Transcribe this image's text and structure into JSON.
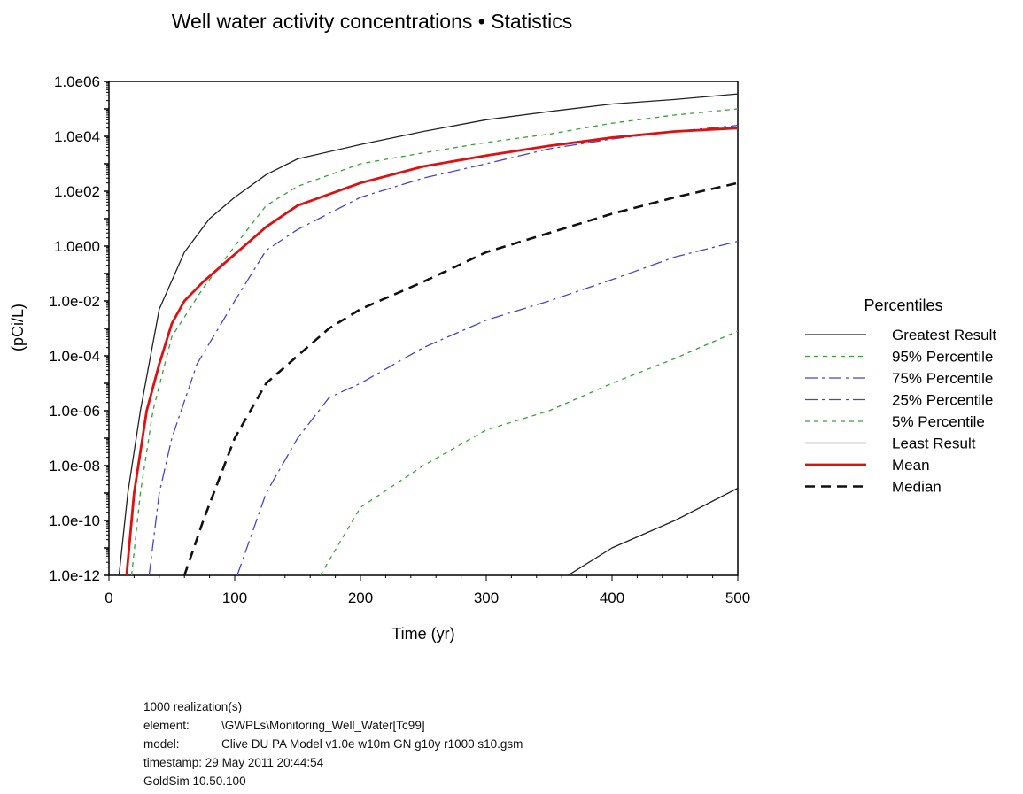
{
  "chart_data": {
    "type": "line",
    "title": "Well water activity concentrations • Statistics",
    "xlabel": "Time (yr)",
    "ylabel": "(pCi/L)",
    "xlim": [
      0,
      500
    ],
    "xticks": [
      0,
      100,
      200,
      300,
      400,
      500
    ],
    "xtick_labels": [
      "0",
      "100",
      "200",
      "300",
      "400",
      "500"
    ],
    "yscale": "log",
    "ylim_exp": [
      -12,
      6
    ],
    "yticks_exp": [
      -12,
      -10,
      -8,
      -6,
      -4,
      -2,
      0,
      2,
      4,
      6
    ],
    "ytick_labels": [
      "1.0e-12",
      "1.0e-10",
      "1.0e-08",
      "1.0e-06",
      "1.0e-04",
      "1.0e-02",
      "1.0e00",
      "1.0e02",
      "1.0e04",
      "1.0e06"
    ],
    "grid": false,
    "legend_title": "Percentiles",
    "legend_position": "right",
    "series": [
      {
        "name": "Greatest Result",
        "color": "#222222",
        "dash": "solid",
        "x": [
          8,
          15,
          25,
          40,
          60,
          80,
          100,
          125,
          150,
          200,
          250,
          300,
          350,
          400,
          450,
          500
        ],
        "y": [
          1e-12,
          1e-09,
          1e-06,
          0.005,
          0.6,
          10,
          60,
          400,
          1500,
          5000,
          15000,
          40000,
          80000,
          150000,
          220000,
          350000
        ]
      },
      {
        "name": "95% Percentile",
        "color": "#3aa03a",
        "dash": "5,5",
        "x": [
          18,
          25,
          35,
          50,
          75,
          100,
          125,
          150,
          200,
          250,
          300,
          350,
          400,
          450,
          500
        ],
        "y": [
          1e-12,
          1e-09,
          1e-06,
          0.0005,
          0.03,
          1,
          30,
          150,
          1000,
          2500,
          6000,
          12000,
          30000,
          60000,
          100000
        ]
      },
      {
        "name": "75% Percentile",
        "color": "#4545c8",
        "dash": "14,5,3,5",
        "x": [
          32,
          40,
          50,
          70,
          100,
          125,
          150,
          200,
          250,
          300,
          350,
          400,
          450,
          500
        ],
        "y": [
          1e-12,
          1e-09,
          1e-07,
          5e-05,
          0.01,
          0.7,
          4,
          60,
          300,
          1000,
          3500,
          8000,
          15000,
          25000
        ]
      },
      {
        "name": "25% Percentile",
        "color": "#4545c8",
        "dash": "14,5,3,5",
        "x": [
          102,
          125,
          150,
          175,
          200,
          250,
          300,
          350,
          400,
          450,
          500
        ],
        "y": [
          1e-12,
          1e-09,
          1e-07,
          3e-06,
          1e-05,
          0.0002,
          0.002,
          0.01,
          0.06,
          0.4,
          1.5
        ]
      },
      {
        "name": "5% Percentile",
        "color": "#3aa03a",
        "dash": "5,5",
        "x": [
          168,
          200,
          250,
          300,
          350,
          400,
          450,
          500
        ],
        "y": [
          1e-12,
          3e-10,
          1e-08,
          2e-07,
          1e-06,
          1e-05,
          8e-05,
          0.0008
        ]
      },
      {
        "name": "Least Result",
        "color": "#222222",
        "dash": "solid",
        "x": [
          365,
          400,
          450,
          500
        ],
        "y": [
          1e-12,
          1e-11,
          1e-10,
          1.5e-09
        ]
      },
      {
        "name": "Mean",
        "color": "#dd1111",
        "dash": "solid",
        "x": [
          14,
          20,
          30,
          40,
          50,
          60,
          75,
          100,
          125,
          150,
          200,
          250,
          300,
          350,
          400,
          450,
          500
        ],
        "y": [
          1e-12,
          1e-09,
          1e-06,
          5e-05,
          0.0015,
          0.01,
          0.05,
          0.5,
          5,
          30,
          200,
          800,
          2000,
          4500,
          9000,
          15000,
          20000
        ]
      },
      {
        "name": "Median",
        "color": "#111111",
        "dash": "11,7",
        "x": [
          60,
          75,
          100,
          125,
          150,
          175,
          200,
          250,
          300,
          350,
          400,
          450,
          500
        ],
        "y": [
          1e-12,
          1e-10,
          1e-07,
          1e-05,
          0.0001,
          0.001,
          0.005,
          0.05,
          0.6,
          3,
          15,
          60,
          200
        ]
      }
    ]
  },
  "footer": {
    "realizations": "1000 realization(s)",
    "element_key": "element:",
    "element_value": "\\GWPLs\\Monitoring_Well_Water[Tc99]",
    "model_key": "model:",
    "model_value": "Clive DU PA Model v1.0e w10m GN g10y r1000 s10.gsm",
    "timestamp_key": "timestamp:",
    "timestamp_value": "29 May 2011 20:44:54",
    "version": "GoldSim 10.50.100"
  }
}
